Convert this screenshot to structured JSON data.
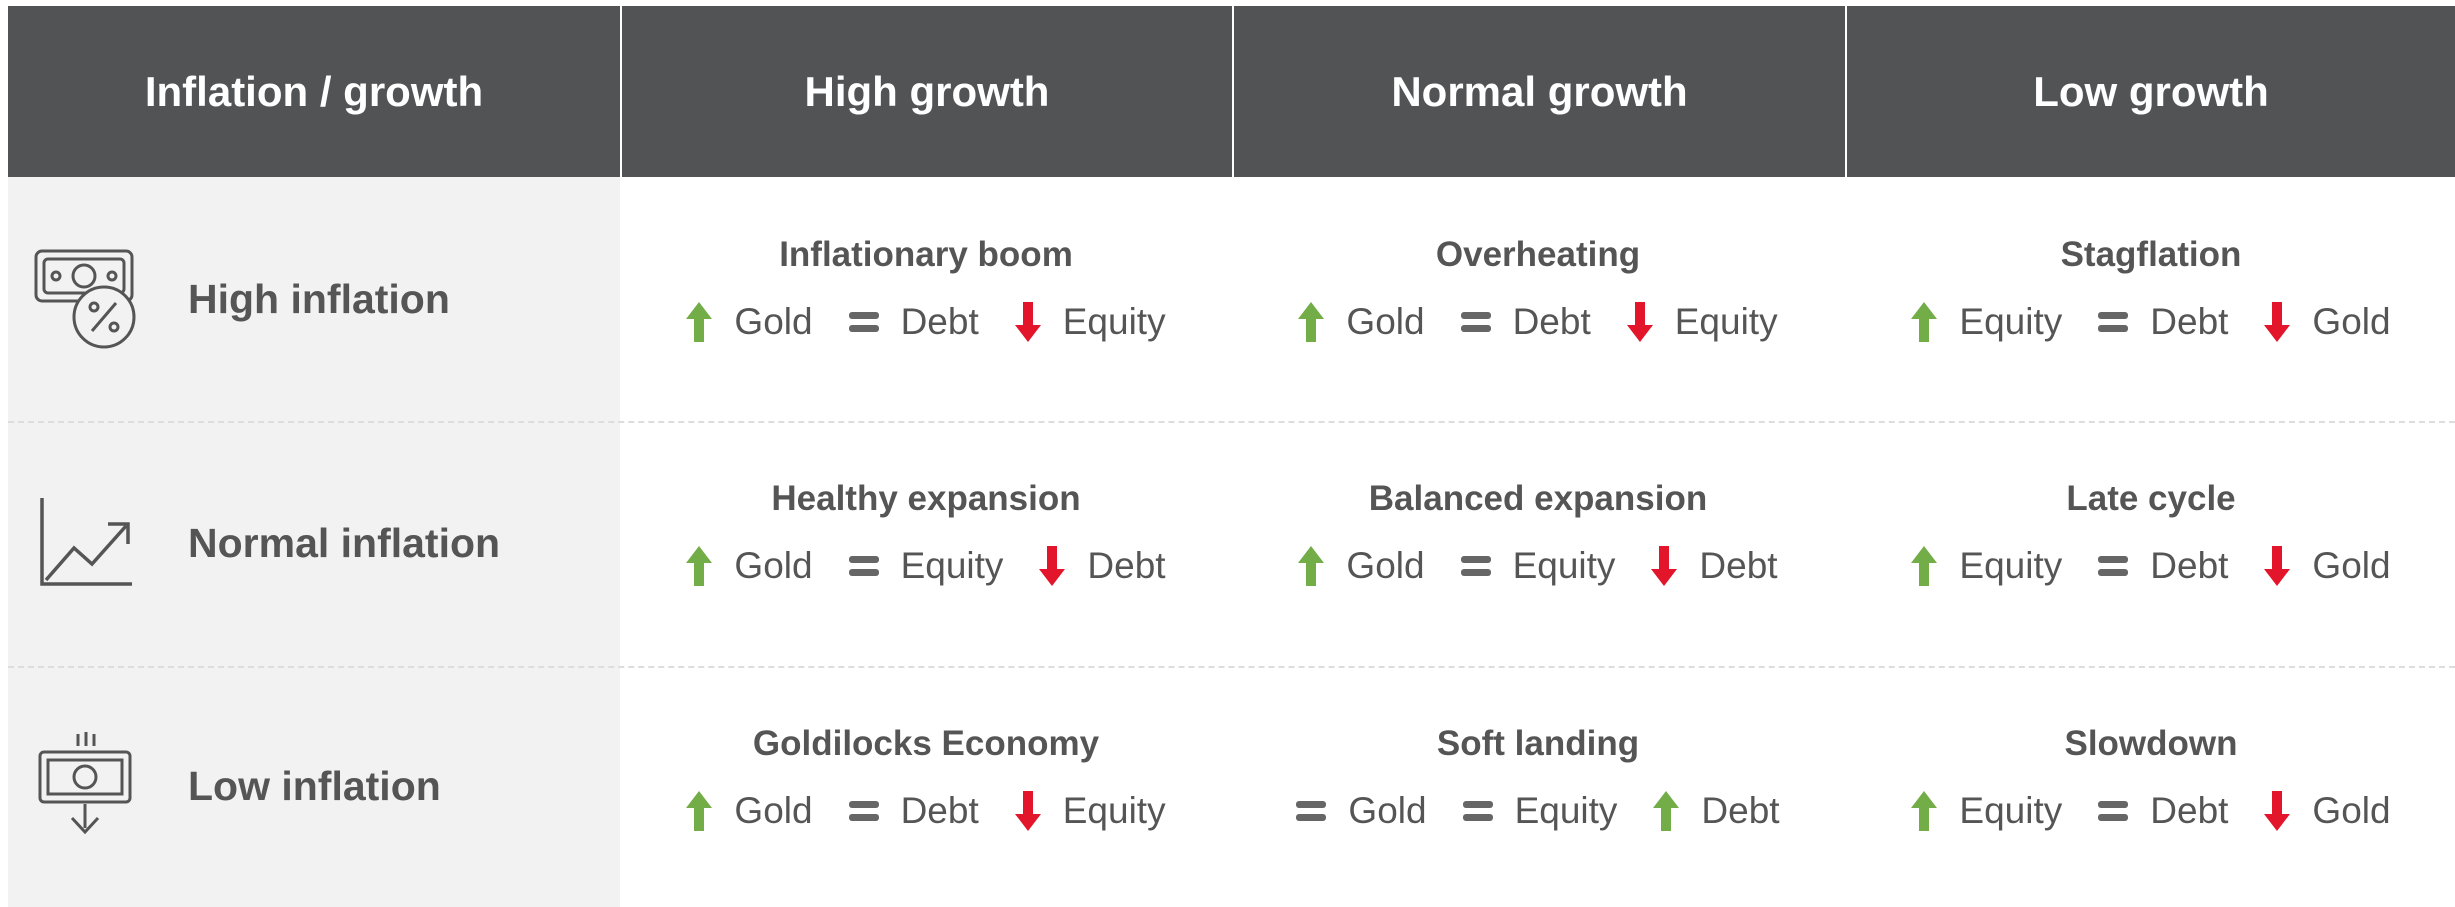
{
  "header": [
    "Inflation / growth",
    "High growth",
    "Normal growth",
    "Low growth"
  ],
  "rows": [
    {
      "label": "High inflation",
      "cells": [
        {
          "title": "Inflationary boom",
          "items": [
            "Gold",
            "Debt",
            "Equity"
          ]
        },
        {
          "title": "Overheating",
          "items": [
            "Gold",
            "Debt",
            "Equity"
          ]
        },
        {
          "title": "Stagflation",
          "items": [
            "Equity",
            "Debt",
            "Gold"
          ]
        }
      ]
    },
    {
      "label": "Normal inflation",
      "cells": [
        {
          "title": "Healthy expansion",
          "items": [
            "Gold",
            "Equity",
            "Debt"
          ]
        },
        {
          "title": "Balanced expansion",
          "items": [
            "Gold",
            "Equity",
            "Debt"
          ]
        },
        {
          "title": "Late cycle",
          "items": [
            "Equity",
            "Debt",
            "Gold"
          ]
        }
      ]
    },
    {
      "label": "Low inflation",
      "cells": [
        {
          "title": "Goldilocks Economy",
          "items": [
            "Gold",
            "Debt",
            "Equity"
          ]
        },
        {
          "title": "Soft landing",
          "items": [
            "Gold",
            "Equity",
            "Debt"
          ]
        },
        {
          "title": "Slowdown",
          "items": [
            "Equity",
            "Debt",
            "Gold"
          ]
        }
      ]
    }
  ]
}
